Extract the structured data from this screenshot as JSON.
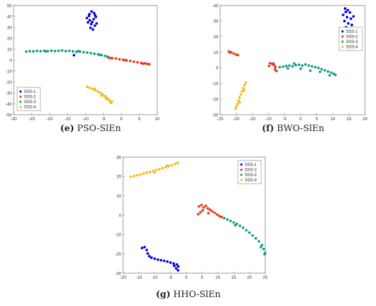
{
  "series_colors": [
    "#0000dd",
    "#e8391b",
    "#109d84",
    "#f2bb17"
  ],
  "chart_data": [
    {
      "type": "scatter",
      "caption_letter": "(e)",
      "caption_text": "PSO-SlEn",
      "title": "",
      "xlabel": "",
      "ylabel": "",
      "xlim": [
        -30,
        10
      ],
      "ylim": [
        -50,
        50
      ],
      "xticks": [
        -30,
        -25,
        -20,
        -15,
        -10,
        -5,
        0,
        5,
        10
      ],
      "yticks": [
        -50,
        -40,
        -30,
        -20,
        -10,
        0,
        10,
        20,
        30,
        40,
        50
      ],
      "legend_position": "bottom-left",
      "series": [
        {
          "name": "SSS-1",
          "points": [
            [
              -8.9,
              42
            ],
            [
              -8.3,
              44.5
            ],
            [
              -7.6,
              43
            ],
            [
              -9.6,
              38.5
            ],
            [
              -8.8,
              36.5
            ],
            [
              -7.7,
              37.5
            ],
            [
              -7.1,
              39.5
            ],
            [
              -9.3,
              34.5
            ],
            [
              -8.4,
              33
            ],
            [
              -7.4,
              31.5
            ],
            [
              -8.6,
              29.5
            ],
            [
              -7.9,
              28
            ],
            [
              -6.9,
              33.5
            ],
            [
              -9.0,
              40.5
            ],
            [
              -7.3,
              41
            ],
            [
              -8.1,
              35
            ],
            [
              -13.2,
              4.5
            ]
          ]
        },
        {
          "name": "SSS-2",
          "points": [
            [
              -3.5,
              2.2
            ],
            [
              -2.5,
              1.8
            ],
            [
              -1.5,
              1.5
            ],
            [
              -0.5,
              0.8
            ],
            [
              0.5,
              0.3
            ],
            [
              1.5,
              -0.3
            ],
            [
              2.5,
              -0.8
            ],
            [
              3.5,
              -1.5
            ],
            [
              4.5,
              -2
            ],
            [
              5.5,
              -2.5
            ],
            [
              6.5,
              -3
            ],
            [
              7.2,
              -3.5
            ],
            [
              7.8,
              -3.8
            ],
            [
              -3.0,
              1.9
            ],
            [
              1.0,
              0
            ],
            [
              6.0,
              -3.3
            ]
          ]
        },
        {
          "name": "SSS-3",
          "points": [
            [
              -26.5,
              7.8
            ],
            [
              -25.5,
              8.2
            ],
            [
              -24.5,
              8
            ],
            [
              -23.5,
              8.4
            ],
            [
              -22.5,
              8.1
            ],
            [
              -21.5,
              8.5
            ],
            [
              -20.5,
              8.2
            ],
            [
              -19.5,
              8.6
            ],
            [
              -18.5,
              8.3
            ],
            [
              -17.5,
              8.5
            ],
            [
              -16.5,
              8.8
            ],
            [
              -15.5,
              8.2
            ],
            [
              -14.5,
              8.4
            ],
            [
              -13.5,
              8
            ],
            [
              -12.5,
              7.5
            ],
            [
              -11.5,
              7.8
            ],
            [
              -10.5,
              7.2
            ],
            [
              -9.5,
              6.8
            ],
            [
              -8.5,
              6.3
            ],
            [
              -7.5,
              5.8
            ],
            [
              -6.5,
              5.2
            ],
            [
              -5.5,
              4.5
            ],
            [
              -4.5,
              3.8
            ],
            [
              -3.8,
              3
            ],
            [
              -21.0,
              7.9
            ],
            [
              -12.0,
              8.3
            ],
            [
              -6.0,
              4.8
            ]
          ]
        },
        {
          "name": "SSS-4",
          "points": [
            [
              -9.5,
              -24.5
            ],
            [
              -8.8,
              -25.5
            ],
            [
              -8.0,
              -26.5
            ],
            [
              -7.2,
              -27.5
            ],
            [
              -6.5,
              -28.8
            ],
            [
              -5.8,
              -30
            ],
            [
              -5.2,
              -31.5
            ],
            [
              -4.6,
              -33
            ],
            [
              -4.0,
              -34.5
            ],
            [
              -3.6,
              -36
            ],
            [
              -3.2,
              -37.5
            ],
            [
              -2.9,
              -39
            ],
            [
              -2.6,
              -38
            ],
            [
              -4.3,
              -35.5
            ],
            [
              -5.5,
              -32.5
            ],
            [
              -7.5,
              -26.3
            ]
          ]
        }
      ]
    },
    {
      "type": "scatter",
      "caption_letter": "(f)",
      "caption_text": "BWO-SlEn",
      "title": "",
      "xlabel": "",
      "ylabel": "",
      "xlim": [
        -25,
        20
      ],
      "ylim": [
        -30,
        40
      ],
      "xticks": [
        -25,
        -20,
        -15,
        -10,
        -5,
        0,
        5,
        10,
        15,
        20
      ],
      "yticks": [
        -30,
        -20,
        -10,
        0,
        10,
        20,
        30,
        40
      ],
      "legend_position": "top-right",
      "series": [
        {
          "name": "SSS-1",
          "points": [
            [
              13.8,
              38
            ],
            [
              14.6,
              37
            ],
            [
              15.3,
              35.5
            ],
            [
              13.2,
              34
            ],
            [
              14.4,
              32.5
            ],
            [
              15.6,
              31.5
            ],
            [
              13.6,
              30
            ],
            [
              14.8,
              28.5
            ],
            [
              15.9,
              27.5
            ],
            [
              14.1,
              26
            ],
            [
              13.3,
              24.5
            ],
            [
              15.1,
              23.5
            ],
            [
              16.4,
              33
            ],
            [
              14.0,
              35.8
            ],
            [
              15.4,
              25.3
            ]
          ]
        },
        {
          "name": "SSS-2",
          "points": [
            [
              -22.3,
              10.5
            ],
            [
              -21.6,
              10
            ],
            [
              -20.8,
              9.2
            ],
            [
              -20.0,
              8.5
            ],
            [
              -19.5,
              8.2
            ],
            [
              -21.9,
              9.8
            ],
            [
              -9.5,
              3
            ],
            [
              -8.8,
              2.5
            ],
            [
              -8.2,
              1.8
            ],
            [
              -7.8,
              0.5
            ],
            [
              -8.0,
              -1
            ],
            [
              -7.5,
              -2
            ],
            [
              -8.5,
              2.8
            ],
            [
              -9.8,
              1.2
            ]
          ]
        },
        {
          "name": "SSS-3",
          "points": [
            [
              -6.5,
              0.5
            ],
            [
              -5.5,
              0.8
            ],
            [
              -4.5,
              1.2
            ],
            [
              -3.5,
              1.5
            ],
            [
              -2.5,
              1
            ],
            [
              -1.5,
              1.8
            ],
            [
              -0.5,
              2
            ],
            [
              0.5,
              1.5
            ],
            [
              1.5,
              2.2
            ],
            [
              2.5,
              1.5
            ],
            [
              3.5,
              1
            ],
            [
              4.5,
              0.5
            ],
            [
              5.5,
              0
            ],
            [
              6.5,
              -0.8
            ],
            [
              7.5,
              -1.5
            ],
            [
              8.5,
              -2.3
            ],
            [
              9.5,
              -3
            ],
            [
              10.3,
              -3.8
            ],
            [
              10.8,
              -4.5
            ],
            [
              -4.0,
              -0.3
            ],
            [
              0.0,
              -0.5
            ],
            [
              3.0,
              -1.8
            ],
            [
              6.0,
              -2.5
            ],
            [
              9.0,
              -4.8
            ],
            [
              -2.0,
              2.8
            ]
          ]
        },
        {
          "name": "SSS-4",
          "points": [
            [
              -17.0,
              -9.5
            ],
            [
              -17.4,
              -11
            ],
            [
              -17.8,
              -13
            ],
            [
              -18.2,
              -15
            ],
            [
              -18.6,
              -17
            ],
            [
              -19.0,
              -19
            ],
            [
              -19.3,
              -21
            ],
            [
              -19.6,
              -23
            ],
            [
              -19.9,
              -24.5
            ],
            [
              -20.2,
              -26
            ],
            [
              -18.9,
              -22
            ],
            [
              -17.6,
              -14.5
            ]
          ]
        }
      ]
    },
    {
      "type": "scatter",
      "caption_letter": "(g)",
      "caption_text": "HHO-SlEn",
      "title": "",
      "xlabel": "",
      "ylabel": "",
      "xlim": [
        -20,
        25
      ],
      "ylim": [
        -30,
        30
      ],
      "xticks": [
        -20,
        -15,
        -10,
        -5,
        0,
        5,
        10,
        15,
        20,
        25
      ],
      "yticks": [
        -30,
        -20,
        -10,
        0,
        10,
        20,
        30
      ],
      "legend_position": "top-right",
      "series": [
        {
          "name": "SSS-1",
          "points": [
            [
              -14.0,
              -17
            ],
            [
              -13.2,
              -16.5
            ],
            [
              -12.5,
              -18
            ],
            [
              -12.2,
              -19.8
            ],
            [
              -11.7,
              -21.2
            ],
            [
              -11.0,
              -22
            ],
            [
              -10.0,
              -22.5
            ],
            [
              -9.0,
              -23
            ],
            [
              -8.0,
              -23.3
            ],
            [
              -7.0,
              -23.6
            ],
            [
              -6.0,
              -24
            ],
            [
              -5.0,
              -24.5
            ],
            [
              -4.0,
              -25
            ],
            [
              -3.0,
              -25.5
            ],
            [
              -2.5,
              -26.5
            ],
            [
              -3.2,
              -27.5
            ],
            [
              -2.6,
              -28.5
            ],
            [
              -3.8,
              -26.2
            ]
          ]
        },
        {
          "name": "SSS-2",
          "points": [
            [
              4.0,
              4.5
            ],
            [
              4.8,
              5.2
            ],
            [
              5.5,
              4
            ],
            [
              6.2,
              4.8
            ],
            [
              6.8,
              3.5
            ],
            [
              7.5,
              2.8
            ],
            [
              8.2,
              2
            ],
            [
              9.0,
              1.2
            ],
            [
              9.8,
              0.3
            ],
            [
              10.5,
              -0.5
            ],
            [
              11.2,
              -1
            ],
            [
              4.5,
              1.5
            ],
            [
              3.8,
              0.5
            ],
            [
              5.2,
              2.5
            ],
            [
              7.0,
              1.0
            ]
          ]
        },
        {
          "name": "SSS-3",
          "points": [
            [
              12.0,
              -1.5
            ],
            [
              13.0,
              -2.2
            ],
            [
              14.0,
              -3
            ],
            [
              15.0,
              -3.8
            ],
            [
              16.0,
              -4.5
            ],
            [
              17.0,
              -5.5
            ],
            [
              18.0,
              -6.5
            ],
            [
              19.0,
              -7.8
            ],
            [
              20.0,
              -9
            ],
            [
              21.0,
              -10.5
            ],
            [
              22.0,
              -12
            ],
            [
              23.0,
              -13.5
            ],
            [
              24.0,
              -15.5
            ],
            [
              24.5,
              -17.5
            ],
            [
              25.0,
              -19.5
            ],
            [
              24.8,
              -20.2
            ],
            [
              23.6,
              -16.5
            ],
            [
              15.5,
              -5.2
            ]
          ]
        },
        {
          "name": "SSS-4",
          "points": [
            [
              -17.5,
              19.8
            ],
            [
              -16.5,
              20.2
            ],
            [
              -15.5,
              20.6
            ],
            [
              -14.5,
              21
            ],
            [
              -13.5,
              21.5
            ],
            [
              -12.5,
              21.9
            ],
            [
              -11.5,
              22.3
            ],
            [
              -10.5,
              22.8
            ],
            [
              -9.5,
              23.3
            ],
            [
              -8.5,
              23.8
            ],
            [
              -7.5,
              24.3
            ],
            [
              -6.5,
              24.8
            ],
            [
              -5.5,
              25.3
            ],
            [
              -4.5,
              25.8
            ],
            [
              -3.5,
              26.5
            ],
            [
              -2.7,
              27
            ],
            [
              -10.0,
              22.0
            ],
            [
              -6.0,
              25.6
            ]
          ]
        }
      ]
    }
  ]
}
